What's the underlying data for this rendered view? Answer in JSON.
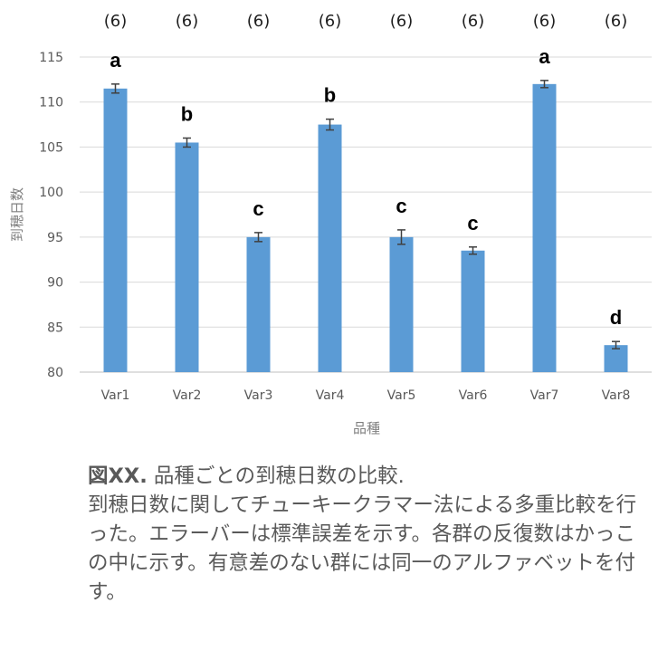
{
  "chart_data": {
    "type": "bar",
    "categories": [
      "Var1",
      "Var2",
      "Var3",
      "Var4",
      "Var5",
      "Var6",
      "Var7",
      "Var8"
    ],
    "values": [
      111.5,
      105.5,
      95.0,
      107.5,
      95.0,
      93.5,
      112.0,
      83.0
    ],
    "errors": [
      0.5,
      0.5,
      0.5,
      0.6,
      0.8,
      0.4,
      0.4,
      0.4
    ],
    "group_letters": [
      "a",
      "b",
      "c",
      "b",
      "c",
      "c",
      "a",
      "d"
    ],
    "n_labels": [
      "(6)",
      "(6)",
      "(6)",
      "(6)",
      "(6)",
      "(6)",
      "(6)",
      "(6)"
    ],
    "xlabel": "品種",
    "ylabel": "到穂日数",
    "ylim": [
      80,
      115
    ],
    "yticks": [
      80,
      85,
      90,
      95,
      100,
      105,
      110,
      115
    ],
    "ytick_labels": [
      "80",
      "85",
      "90",
      "95",
      "100",
      "105",
      "110",
      "115"
    ],
    "grid": true,
    "legend": "none",
    "colors": {
      "bar": "#5b9bd5",
      "gridline": "#d9d9d9",
      "axis": "#bfbfbf",
      "errorbar": "#404040"
    }
  },
  "caption": {
    "label": "図XX.",
    "title": " 品種ごとの到穂日数の比較.",
    "body": "到穂日数に関してチューキークラマー法による多重比較を行った。エラーバーは標準誤差を示す。各群の反復数はかっこの中に示す。有意差のない群には同一のアルファベットを付す。"
  }
}
